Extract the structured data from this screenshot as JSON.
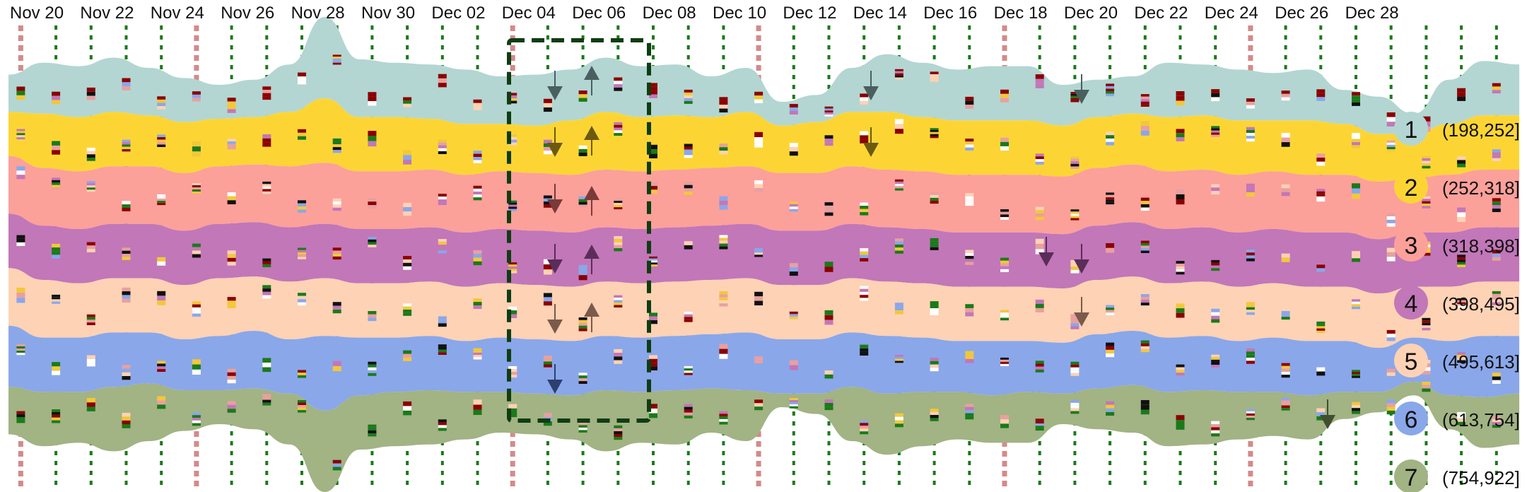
{
  "chart_data": {
    "type": "area",
    "subtype": "stacked-streamgraph",
    "title": "",
    "xlabel": "",
    "ylabel": "",
    "x_tick_labels": [
      "Nov 20",
      "Nov 22",
      "Nov 24",
      "Nov 26",
      "Nov 28",
      "Nov 30",
      "Dec 02",
      "Dec 04",
      "Dec 06",
      "Dec 08",
      "Dec 10",
      "Dec 12",
      "Dec 14",
      "Dec 16",
      "Dec 18",
      "Dec 20",
      "Dec 22",
      "Dec 24",
      "Dec 26",
      "Dec 28"
    ],
    "legend_position": "right",
    "series": [
      {
        "id": "1",
        "range": "(198,252]",
        "color": "#b3d6d2",
        "values": [
          1.1,
          1.5,
          1.5,
          1.6,
          1.4,
          1.3,
          1.0,
          1.1,
          1.4,
          2.4,
          1.7,
          1.6,
          1.6,
          1.6,
          1.4,
          1.5,
          1.5,
          1.6,
          1.5,
          1.5,
          1.2,
          1.3,
          0.7,
          0.8,
          1.3,
          1.7,
          1.6,
          1.5,
          1.6,
          1.6,
          1.2,
          1.1,
          1.1,
          1.6,
          1.5,
          1.5,
          1.4,
          1.5,
          1.0,
          1.1,
          0.6,
          1.3,
          1.6,
          1.5
        ]
      },
      {
        "id": "2",
        "range": "(252,318]",
        "color": "#fcd535",
        "values": [
          1.3,
          1.6,
          1.6,
          1.6,
          1.5,
          1.5,
          1.4,
          1.4,
          1.6,
          1.9,
          1.6,
          1.6,
          1.5,
          1.5,
          1.4,
          1.4,
          1.6,
          1.7,
          1.6,
          1.6,
          1.5,
          1.6,
          1.4,
          1.5,
          1.6,
          1.7,
          1.6,
          1.6,
          1.6,
          1.6,
          1.5,
          1.5,
          1.5,
          1.6,
          1.6,
          1.6,
          1.5,
          1.6,
          1.5,
          1.4,
          1.3,
          1.5,
          1.6,
          1.6
        ]
      },
      {
        "id": "3",
        "range": "(318,398]",
        "color": "#fca09a",
        "values": [
          1.7,
          1.7,
          1.7,
          1.7,
          1.7,
          1.7,
          1.7,
          1.7,
          1.8,
          1.8,
          1.7,
          1.7,
          1.7,
          1.7,
          1.7,
          1.7,
          1.7,
          1.7,
          1.7,
          1.7,
          1.7,
          1.7,
          1.7,
          1.7,
          1.7,
          1.7,
          1.7,
          1.7,
          1.7,
          1.7,
          1.7,
          1.7,
          1.7,
          1.7,
          1.7,
          1.7,
          1.7,
          1.7,
          1.7,
          1.7,
          1.6,
          1.7,
          1.7,
          1.7
        ]
      },
      {
        "id": "4",
        "range": "(398,495]",
        "color": "#c277b8",
        "values": [
          1.6,
          1.6,
          1.6,
          1.6,
          1.6,
          1.6,
          1.6,
          1.6,
          1.6,
          1.6,
          1.6,
          1.6,
          1.6,
          1.6,
          1.6,
          1.6,
          1.6,
          1.6,
          1.6,
          1.6,
          1.6,
          1.6,
          1.6,
          1.6,
          1.6,
          1.6,
          1.6,
          1.6,
          1.6,
          1.6,
          1.6,
          1.6,
          1.6,
          1.6,
          1.6,
          1.6,
          1.6,
          1.6,
          1.6,
          1.6,
          1.6,
          1.6,
          1.6,
          1.6
        ]
      },
      {
        "id": "5",
        "range": "(495,613]",
        "color": "#fed2b4",
        "values": [
          1.7,
          1.7,
          1.6,
          1.6,
          1.6,
          1.6,
          1.7,
          1.6,
          1.7,
          1.7,
          1.6,
          1.6,
          1.6,
          1.6,
          1.6,
          1.6,
          1.6,
          1.6,
          1.6,
          1.6,
          1.6,
          1.6,
          1.6,
          1.6,
          1.6,
          1.6,
          1.6,
          1.6,
          1.6,
          1.6,
          1.6,
          1.6,
          1.6,
          1.6,
          1.6,
          1.6,
          1.6,
          1.6,
          1.6,
          1.6,
          1.5,
          1.6,
          1.6,
          1.6
        ]
      },
      {
        "id": "6",
        "range": "(613,754]",
        "color": "#8aa7ea",
        "values": [
          1.8,
          1.6,
          1.6,
          1.6,
          1.5,
          1.5,
          1.6,
          1.7,
          1.6,
          2.2,
          1.7,
          1.6,
          1.6,
          1.5,
          1.6,
          1.6,
          1.6,
          1.6,
          1.6,
          1.6,
          1.6,
          1.7,
          1.6,
          1.6,
          1.6,
          1.7,
          1.6,
          1.5,
          1.6,
          1.5,
          1.5,
          1.6,
          1.6,
          1.6,
          1.6,
          1.5,
          1.6,
          1.6,
          1.5,
          1.3,
          1.3,
          1.6,
          1.8,
          1.7
        ]
      },
      {
        "id": "7",
        "range": "(754,922]",
        "color": "#a2b384",
        "values": [
          1.4,
          1.6,
          1.5,
          1.9,
          1.7,
          1.2,
          1.0,
          1.2,
          1.5,
          2.4,
          1.6,
          1.6,
          1.6,
          1.4,
          1.2,
          1.2,
          1.3,
          1.8,
          1.5,
          1.6,
          1.3,
          1.5,
          0.4,
          0.6,
          1.6,
          1.8,
          1.6,
          1.4,
          1.4,
          1.5,
          0.9,
          1.2,
          1.4,
          1.6,
          1.6,
          1.4,
          1.3,
          1.3,
          0.8,
          0.6,
          0.4,
          1.0,
          1.5,
          1.5
        ]
      }
    ],
    "annotations": [
      {
        "type": "dashed-rectangle",
        "label": "",
        "x_range": [
          "Dec 04",
          "Dec 07"
        ],
        "color": "#0f3d12"
      }
    ]
  },
  "legend": {
    "title": "",
    "items": [
      {
        "num": "1",
        "range": "(198,252]"
      },
      {
        "num": "2",
        "range": "(252,318]"
      },
      {
        "num": "3",
        "range": "(318,398]"
      },
      {
        "num": "4",
        "range": "(398,495]"
      },
      {
        "num": "5",
        "range": "(495,613]"
      },
      {
        "num": "6",
        "range": "(613,754]"
      },
      {
        "num": "7",
        "range": "(754,922]"
      }
    ]
  }
}
